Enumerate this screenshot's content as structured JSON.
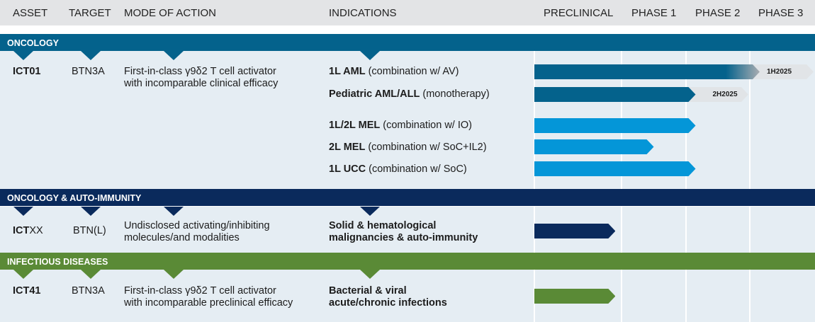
{
  "header": {
    "asset": "ASSET",
    "target": "TARGET",
    "moa": "MODE OF ACTION",
    "indications": "INDICATIONS",
    "phases": [
      "PRECLINICAL",
      "PHASE 1",
      "PHASE 2",
      "PHASE 3"
    ]
  },
  "colors": {
    "oncology": "#04628c",
    "oncology_light": "#0496d8",
    "auto_immunity": "#0a2a5c",
    "infectious": "#5a8a36",
    "body": "#e5edf3",
    "header": "#e3e4e6"
  },
  "sections": [
    {
      "title": "ONCOLOGY",
      "asset": "ICT01",
      "target": "BTN3A",
      "moa": [
        "First-in-class γ9δ2 T cell activator",
        "with incomparable clinical efficacy"
      ],
      "indications": [
        {
          "bold": "1L AML",
          "rest": " (combination w/ AV)",
          "progress_phases": 3.0,
          "milestone": "1H2025",
          "milestone_to_phases": 4.0
        },
        {
          "bold": "Pediatric AML/ALL",
          "rest": " (monotherapy)",
          "progress_phases": 2.15,
          "milestone": "2H2025",
          "milestone_to_phases": 3.0
        },
        {
          "bold": "1L/2L MEL",
          "rest": " (combination w/ IO)",
          "progress_phases": 2.15
        },
        {
          "bold": "2L MEL",
          "rest": " (combination w/ SoC+IL2)",
          "progress_phases": 1.5
        },
        {
          "bold": "1L UCC",
          "rest": " (combination w/ SoC)",
          "progress_phases": 2.15
        }
      ]
    },
    {
      "title": "ONCOLOGY & AUTO-IMMUNITY",
      "asset_bold": "ICT",
      "asset_rest": "XX",
      "target": "BTN(L)",
      "moa": [
        "Undisclosed activating/inhibiting",
        "molecules/and modalities"
      ],
      "indications": [
        {
          "lines": [
            "Solid & hematological",
            "malignancies & auto-immunity"
          ],
          "progress_phases": 0.93
        }
      ]
    },
    {
      "title": "INFECTIOUS DISEASES",
      "asset": "ICT41",
      "target": "BTN3A",
      "moa": [
        "First-in-class γ9δ2 T cell activator",
        "with incomparable preclinical efficacy"
      ],
      "indications": [
        {
          "lines": [
            "Bacterial & viral",
            "acute/chronic infections"
          ],
          "progress_phases": 0.93
        }
      ]
    }
  ]
}
